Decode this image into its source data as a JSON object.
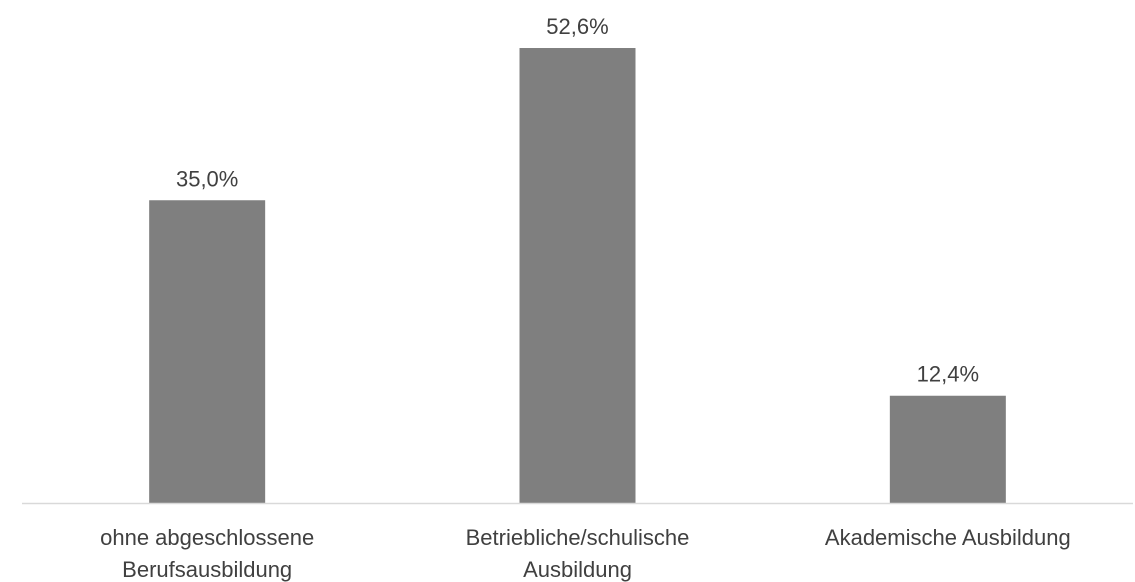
{
  "chart_data": {
    "type": "bar",
    "categories": [
      [
        "ohne abgeschlossene",
        "Berufsausbildung"
      ],
      [
        "Betriebliche/schulische",
        "Ausbildung"
      ],
      [
        "Akademische Ausbildung"
      ]
    ],
    "values": [
      35.0,
      52.6,
      12.4
    ],
    "data_labels": [
      "35,0%",
      "52,6%",
      "12,4%"
    ],
    "title": "",
    "xlabel": "",
    "ylabel": "",
    "ylim": [
      0,
      60
    ],
    "grid": false,
    "legend": "none",
    "bar_color": "#7f7f7f",
    "axis_color": "#d9d9d9",
    "text_color": "#404040"
  }
}
